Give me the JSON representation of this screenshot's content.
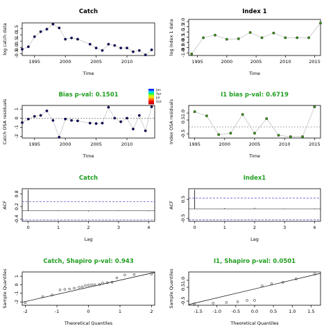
{
  "colors": {
    "frame": "#000000",
    "catch_points": "#0b0b6e",
    "index_points": "#3a9a16",
    "title_green": "#1e9e1e",
    "lines": "#bdbdbd",
    "ci_line": "#2b2bc8"
  },
  "legend": {
    "labels": [
      "Jan",
      "Apr",
      "Jul",
      "Oct"
    ],
    "colors": [
      "#0026ff",
      "#00c8ff",
      "#00ff5a",
      "#b4ff00",
      "#ffd000",
      "#ff6a00",
      "#ff0000",
      "#c80000"
    ]
  },
  "chart_data": [
    {
      "type": "line",
      "title": "Catch",
      "xlabel": "Time",
      "ylabel": "log catch data",
      "xlim": [
        1993,
        2014.5
      ],
      "ylim": [
        -0.65,
        1.95
      ],
      "xticks": [
        1995,
        2000,
        2005,
        2010
      ],
      "yticks": [
        -0.5,
        0.0,
        0.5,
        1.0,
        1.5
      ],
      "x": [
        1993,
        1994,
        1995,
        1996,
        1997,
        1998,
        1999,
        2000,
        2001,
        2002,
        2004,
        2005,
        2006,
        2007,
        2008,
        2009,
        2010,
        2011,
        2012,
        2013,
        2014
      ],
      "y": [
        -0.15,
        0.05,
        0.85,
        1.25,
        1.45,
        1.85,
        1.55,
        0.65,
        0.75,
        0.65,
        0.25,
        -0.05,
        -0.25,
        0.25,
        0.15,
        -0.05,
        -0.05,
        -0.35,
        -0.25,
        -0.6,
        -0.2
      ]
    },
    {
      "type": "line",
      "title": "Index 1",
      "xlabel": "Time",
      "ylabel": "log index 1 data",
      "xlim": [
        1993.5,
        2016
      ],
      "ylim": [
        -1.25,
        2.2
      ],
      "xticks": [
        1995,
        2000,
        2005,
        2010,
        2015
      ],
      "yticks": [
        -1.0,
        -0.5,
        0.0,
        0.5,
        1.0,
        1.5,
        2.0
      ],
      "x": [
        1994,
        1996,
        1998,
        2000,
        2002,
        2004,
        2006,
        2008,
        2010,
        2012,
        2014,
        2016
      ],
      "y": [
        -1.1,
        0.45,
        0.7,
        0.3,
        0.35,
        0.95,
        0.45,
        0.9,
        0.45,
        0.45,
        0.45,
        1.85
      ]
    },
    {
      "type": "line",
      "title": "Bias p-val: 0.1501",
      "xlabel": "Time",
      "ylabel": "Catch OSA residuals",
      "xlim": [
        1993,
        2014.5
      ],
      "ylim": [
        -2.2,
        1.4
      ],
      "xticks": [
        1995,
        2000,
        2005,
        2010
      ],
      "yticks": [
        -2,
        -1,
        0,
        1
      ],
      "x": [
        1993,
        1994,
        1995,
        1996,
        1997,
        1998,
        1999,
        2000,
        2001,
        2002,
        2004,
        2005,
        2006,
        2007,
        2008,
        2009,
        2010,
        2011,
        2012,
        2013,
        2014
      ],
      "y": [
        -0.5,
        -0.1,
        0.2,
        0.3,
        0.8,
        -0.25,
        -2.1,
        -0.1,
        -0.25,
        -0.3,
        -0.55,
        -0.6,
        -0.55,
        1.2,
        0.0,
        -0.4,
        0.0,
        -1.2,
        0.3,
        -1.4,
        1.25
      ]
    },
    {
      "type": "line",
      "title": "I1 bias p-val: 0.6719",
      "xlabel": "Time",
      "ylabel": "Index OSA residuals",
      "xlim": [
        1994,
        2016
      ],
      "ylim": [
        -0.8,
        1.55
      ],
      "xticks": [
        1995,
        2000,
        2005,
        2010,
        2015
      ],
      "yticks": [
        -0.5,
        0.5,
        1.0
      ],
      "x": [
        1995,
        1997,
        1999,
        2001,
        2003,
        2005,
        2007,
        2009,
        2011,
        2013,
        2015
      ],
      "y": [
        1.1,
        0.8,
        -0.55,
        -0.45,
        0.9,
        -0.45,
        0.6,
        -0.6,
        -0.7,
        -0.7,
        1.45
      ]
    },
    {
      "type": "bar",
      "title": "Catch",
      "xlabel": "Lag",
      "ylabel": "ACF",
      "xlim": [
        -0.2,
        4.2
      ],
      "ylim": [
        -0.5,
        1.05
      ],
      "xticks": [
        0,
        1,
        2,
        3,
        4
      ],
      "yticks": [
        -0.4,
        0.2,
        0.8
      ],
      "lags": [
        0,
        1,
        2,
        3,
        4
      ],
      "values": [
        1.0,
        0.02,
        -0.03,
        0.02,
        -0.02
      ],
      "ci": 0.43
    },
    {
      "type": "bar",
      "title": "Index1",
      "xlabel": "Lag",
      "ylabel": "ACF",
      "xlim": [
        -0.2,
        4.2
      ],
      "ylim": [
        -0.65,
        1.05
      ],
      "xticks": [
        0,
        1,
        2,
        3,
        4
      ],
      "yticks": [
        -0.5,
        0.5
      ],
      "lags": [
        0,
        1,
        2,
        3,
        4
      ],
      "values": [
        1.0,
        0.04,
        0.05,
        0.02,
        0.02
      ],
      "ci": 0.57
    },
    {
      "type": "scatter",
      "title": "Catch, Shapiro p-val: 0.943",
      "xlabel": "Theoretical Quantiles",
      "ylabel": "Sample Quantiles",
      "xlim": [
        -2.1,
        2.1
      ],
      "ylim": [
        -2.4,
        1.5
      ],
      "xticks": [
        -2,
        -1,
        0,
        1,
        2
      ],
      "yticks": [
        -2,
        -1,
        0,
        1
      ],
      "x": [
        -2.0,
        -1.45,
        -1.15,
        -0.9,
        -0.75,
        -0.6,
        -0.45,
        -0.3,
        -0.2,
        -0.1,
        0.0,
        0.1,
        0.2,
        0.35,
        0.45,
        0.6,
        0.75,
        0.9,
        1.15,
        1.45,
        2.0
      ],
      "y": [
        -2.1,
        -1.4,
        -1.2,
        -0.6,
        -0.55,
        -0.5,
        -0.4,
        -0.3,
        -0.25,
        -0.1,
        -0.05,
        0.0,
        0.0,
        0.05,
        0.2,
        0.25,
        0.3,
        0.8,
        1.15,
        1.2,
        1.25
      ],
      "line": [
        [
          -2.1,
          -2.05
        ],
        [
          2.1,
          1.45
        ]
      ]
    },
    {
      "type": "scatter",
      "title": "I1, Shapiro p-val: 0.0501",
      "xlabel": "Theoretical Quantiles",
      "ylabel": "Sample Quantiles",
      "xlim": [
        -1.75,
        1.75
      ],
      "ylim": [
        -0.8,
        1.6
      ],
      "xticks": [
        -1.5,
        -1.0,
        -0.5,
        0.0,
        0.5,
        1.0,
        1.5
      ],
      "yticks": [
        -0.5,
        0.5,
        1.0
      ],
      "x": [
        -1.6,
        -1.1,
        -0.75,
        -0.45,
        -0.2,
        0.0,
        0.2,
        0.45,
        0.75,
        1.1,
        1.6
      ],
      "y": [
        -0.7,
        -0.65,
        -0.6,
        -0.55,
        -0.45,
        -0.45,
        0.6,
        0.75,
        0.85,
        1.1,
        1.45
      ],
      "line": [
        [
          -1.75,
          -0.75
        ],
        [
          1.75,
          1.5
        ]
      ]
    }
  ]
}
